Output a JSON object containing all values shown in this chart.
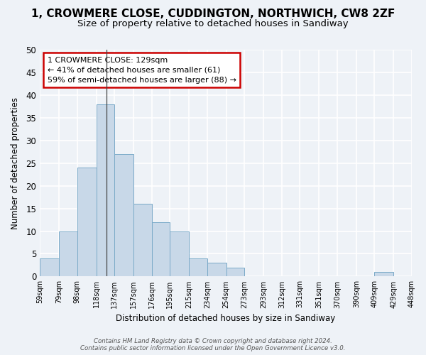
{
  "title": "1, CROWMERE CLOSE, CUDDINGTON, NORTHWICH, CW8 2ZF",
  "subtitle": "Size of property relative to detached houses in Sandiway",
  "xlabel": "Distribution of detached houses by size in Sandiway",
  "ylabel": "Number of detached properties",
  "bar_color": "#c8d8e8",
  "bar_edge_color": "#7aaac8",
  "background_color": "#eef2f7",
  "grid_color": "#ffffff",
  "bins": [
    59,
    79,
    98,
    118,
    137,
    157,
    176,
    195,
    215,
    234,
    254,
    273,
    293,
    312,
    331,
    351,
    370,
    390,
    409,
    429,
    448
  ],
  "bin_labels": [
    "59sqm",
    "79sqm",
    "98sqm",
    "118sqm",
    "137sqm",
    "157sqm",
    "176sqm",
    "195sqm",
    "215sqm",
    "234sqm",
    "254sqm",
    "273sqm",
    "293sqm",
    "312sqm",
    "331sqm",
    "351sqm",
    "370sqm",
    "390sqm",
    "409sqm",
    "429sqm",
    "448sqm"
  ],
  "counts": [
    4,
    10,
    24,
    38,
    27,
    16,
    12,
    10,
    4,
    3,
    2,
    0,
    0,
    0,
    0,
    0,
    0,
    0,
    1,
    0
  ],
  "ylim": [
    0,
    50
  ],
  "yticks": [
    0,
    5,
    10,
    15,
    20,
    25,
    30,
    35,
    40,
    45,
    50
  ],
  "annotation_text": "1 CROWMERE CLOSE: 129sqm\n← 41% of detached houses are smaller (61)\n59% of semi-detached houses are larger (88) →",
  "annotation_box_color": "#ffffff",
  "annotation_box_edge": "#cc0000",
  "vline_x": 129,
  "title_fontsize": 11,
  "subtitle_fontsize": 9.5,
  "footer_text": "Contains HM Land Registry data © Crown copyright and database right 2024.\nContains public sector information licensed under the Open Government Licence v3.0."
}
